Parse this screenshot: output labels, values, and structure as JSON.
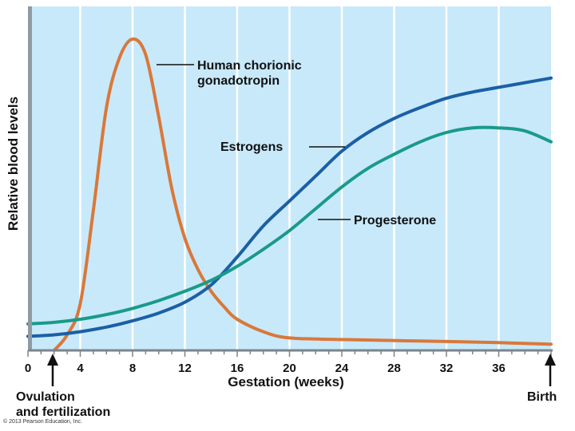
{
  "chart_data": {
    "type": "line",
    "xlabel": "Gestation (weeks)",
    "ylabel": "Relative blood levels",
    "xlim": [
      0,
      40
    ],
    "ylim": [
      0,
      100
    ],
    "x_ticks": [
      0,
      4,
      8,
      12,
      16,
      20,
      24,
      28,
      32,
      36
    ],
    "background": "#c8e9fa",
    "grid_color": "#ffffff",
    "series": [
      {
        "name": "Human chorionic gonadotropin",
        "color": "#d9783a",
        "x": [
          2,
          3,
          4,
          5,
          6,
          7,
          8,
          9,
          10,
          11,
          12,
          13,
          14,
          15,
          16,
          18,
          20,
          24,
          30,
          36,
          40
        ],
        "y": [
          0,
          5,
          15,
          45,
          78,
          94,
          100,
          95,
          75,
          52,
          36,
          26,
          19,
          14,
          10,
          6,
          4,
          3.5,
          3,
          2.5,
          2
        ]
      },
      {
        "name": "Estrogens",
        "color": "#1b5fa5",
        "x": [
          0,
          2,
          4,
          6,
          8,
          10,
          12,
          14,
          16,
          18,
          20,
          22,
          24,
          26,
          28,
          30,
          32,
          34,
          36,
          38,
          40
        ],
        "y": [
          4.5,
          5,
          6,
          7.5,
          9.5,
          12,
          15.5,
          21,
          30,
          40,
          48,
          56,
          64,
          70,
          74.5,
          78,
          81,
          83,
          84.5,
          86,
          87.5
        ]
      },
      {
        "name": "Progesterone",
        "color": "#1a9a8a",
        "x": [
          0,
          2,
          4,
          6,
          8,
          10,
          12,
          14,
          16,
          18,
          20,
          22,
          24,
          26,
          28,
          30,
          32,
          34,
          36,
          38,
          40
        ],
        "y": [
          8.5,
          9,
          10,
          11.5,
          13.5,
          16,
          19,
          22.5,
          27,
          32.5,
          38.5,
          45.5,
          52.5,
          58.5,
          63,
          67,
          70,
          71.5,
          71.5,
          70.5,
          67
        ]
      }
    ]
  },
  "annotations": {
    "ovulation": [
      "Ovulation",
      "and fertilization"
    ],
    "birth": "Birth",
    "copyright": "© 2013 Pearson Education, Inc."
  }
}
